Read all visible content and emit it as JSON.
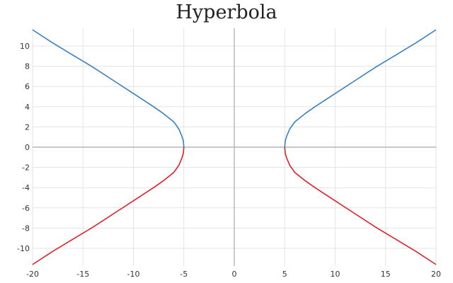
{
  "chart_data": {
    "type": "line",
    "title": "Hyperbola",
    "xlabel": "",
    "ylabel": "",
    "xlim": [
      -20,
      20
    ],
    "ylim": [
      -11.75,
      11.75
    ],
    "x_ticks": [
      -20,
      -15,
      -10,
      -5,
      0,
      5,
      10,
      15,
      20
    ],
    "y_ticks": [
      -10,
      -8,
      -6,
      -4,
      -2,
      0,
      2,
      4,
      6,
      8,
      10
    ],
    "grid": true,
    "legend": "none",
    "series": [
      {
        "color": "#3a7fc0",
        "points": [
          [
            -20,
            11.6
          ],
          [
            -18,
            10.3
          ],
          [
            -16,
            9.1
          ],
          [
            -14,
            7.9
          ],
          [
            -12,
            6.6
          ],
          [
            -10,
            5.3
          ],
          [
            -8,
            4.0
          ],
          [
            -7,
            3.3
          ],
          [
            -6,
            2.5
          ],
          [
            -5.5,
            1.8
          ],
          [
            -5.2,
            1.1
          ],
          [
            -5.05,
            0.6
          ],
          [
            -5,
            0
          ]
        ]
      },
      {
        "color": "#e0202a",
        "points": [
          [
            -20,
            -11.6
          ],
          [
            -18,
            -10.3
          ],
          [
            -16,
            -9.1
          ],
          [
            -14,
            -7.9
          ],
          [
            -12,
            -6.6
          ],
          [
            -10,
            -5.3
          ],
          [
            -8,
            -4.0
          ],
          [
            -7,
            -3.3
          ],
          [
            -6,
            -2.5
          ],
          [
            -5.5,
            -1.8
          ],
          [
            -5.2,
            -1.1
          ],
          [
            -5.05,
            -0.6
          ],
          [
            -5,
            0
          ]
        ]
      },
      {
        "color": "#3a7fc0",
        "points": [
          [
            5,
            0
          ],
          [
            5.05,
            0.6
          ],
          [
            5.2,
            1.1
          ],
          [
            5.5,
            1.8
          ],
          [
            6,
            2.5
          ],
          [
            7,
            3.3
          ],
          [
            8,
            4.0
          ],
          [
            10,
            5.3
          ],
          [
            12,
            6.6
          ],
          [
            14,
            7.9
          ],
          [
            16,
            9.1
          ],
          [
            18,
            10.3
          ],
          [
            20,
            11.6
          ]
        ]
      },
      {
        "color": "#e0202a",
        "points": [
          [
            5,
            0
          ],
          [
            5.05,
            -0.6
          ],
          [
            5.2,
            -1.1
          ],
          [
            5.5,
            -1.8
          ],
          [
            6,
            -2.5
          ],
          [
            7,
            -3.3
          ],
          [
            8,
            -4.0
          ],
          [
            10,
            -5.3
          ],
          [
            12,
            -6.6
          ],
          [
            14,
            -7.9
          ],
          [
            16,
            -9.1
          ],
          [
            18,
            -10.3
          ],
          [
            20,
            -11.6
          ]
        ]
      }
    ]
  }
}
